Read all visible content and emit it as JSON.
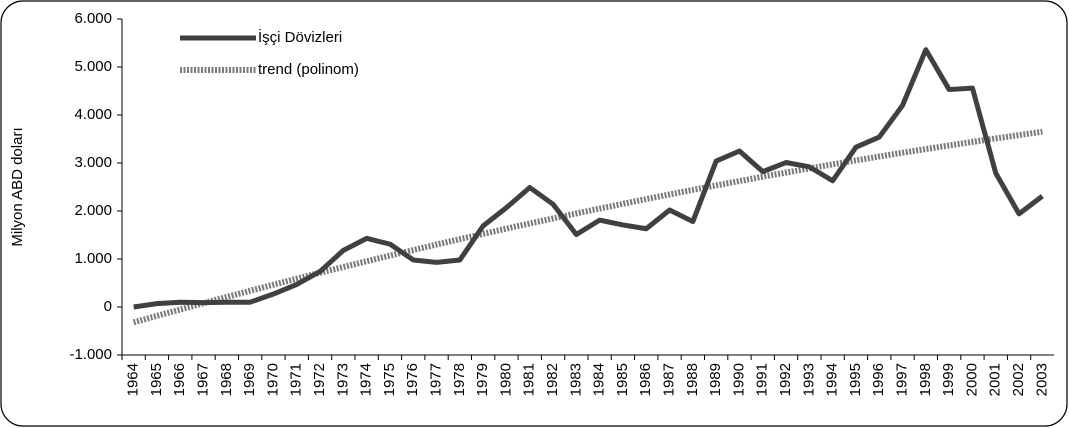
{
  "chart_data": {
    "type": "line",
    "y_label": "Milyon ABD doları",
    "categories": [
      "1964",
      "1965",
      "1966",
      "1967",
      "1968",
      "1969",
      "1970",
      "1971",
      "1972",
      "1973",
      "1974",
      "1975",
      "1976",
      "1977",
      "1978",
      "1979",
      "1980",
      "1981",
      "1982",
      "1983",
      "1984",
      "1985",
      "1986",
      "1987",
      "1988",
      "1989",
      "1990",
      "1991",
      "1992",
      "1993",
      "1994",
      "1995",
      "1996",
      "1997",
      "1998",
      "1999",
      "2000",
      "2001",
      "2002",
      "2003"
    ],
    "series": [
      {
        "name": "İşçi Dövizleri",
        "color": "#404040",
        "values": [
          0,
          70,
          100,
          90,
          100,
          100,
          270,
          470,
          740,
          1180,
          1430,
          1310,
          980,
          930,
          980,
          1690,
          2070,
          2490,
          2140,
          1510,
          1810,
          1710,
          1630,
          2020,
          1780,
          3040,
          3250,
          2820,
          3010,
          2920,
          2630,
          3330,
          3540,
          4200,
          5360,
          4530,
          4560,
          2790,
          1940,
          2310
        ]
      },
      {
        "name": "trend (polinom)",
        "color": "#7a7a7a",
        "values": [
          -320,
          -185,
          -52,
          80,
          210,
          338,
          465,
          590,
          713,
          834,
          953,
          1071,
          1187,
          1301,
          1414,
          1524,
          1633,
          1740,
          1845,
          1949,
          2050,
          2150,
          2248,
          2345,
          2440,
          2533,
          2624,
          2714,
          2801,
          2887,
          2972,
          3054,
          3135,
          3214,
          3291,
          3366,
          3440,
          3512,
          3582,
          3651
        ]
      }
    ],
    "ylim": [
      -1000,
      6000
    ],
    "yticks": [
      {
        "value": -1000,
        "label": "-1.000"
      },
      0,
      {
        "value": 1000,
        "label": "1.000"
      },
      {
        "value": 2000,
        "label": "2.000"
      },
      {
        "value": 3000,
        "label": "3.000"
      },
      {
        "value": 4000,
        "label": "4.000"
      },
      {
        "value": 5000,
        "label": "5.000"
      },
      {
        "value": 6000,
        "label": "6.000"
      }
    ],
    "legend": "top-left"
  }
}
